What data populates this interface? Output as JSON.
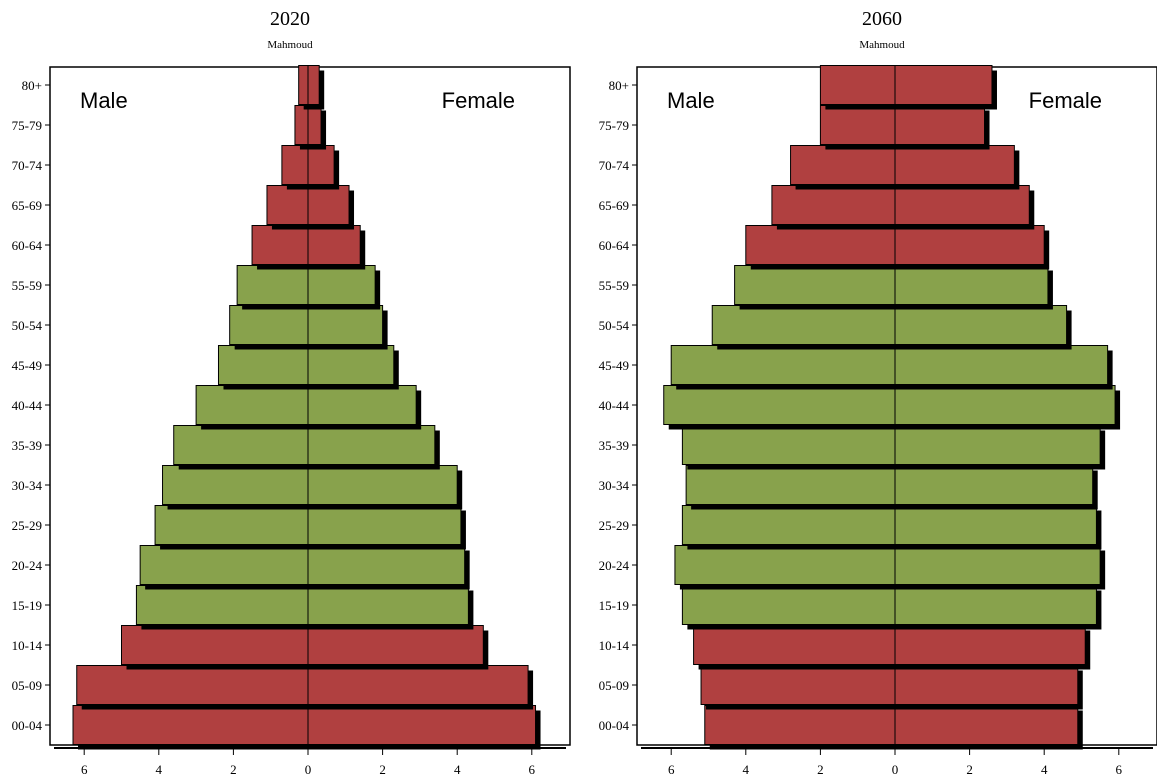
{
  "chart_data": [
    {
      "type": "bar",
      "title": "2020",
      "subtitle": "Mahmoud",
      "left_label": "Male",
      "right_label": "Female",
      "categories": [
        "00-04",
        "05-09",
        "10-14",
        "15-19",
        "20-24",
        "25-29",
        "30-34",
        "35-39",
        "40-44",
        "45-49",
        "50-54",
        "55-59",
        "60-64",
        "65-69",
        "70-74",
        "75-79",
        "80+"
      ],
      "xlim": [
        -6.5,
        6.5
      ],
      "xticks": [
        -6,
        -4,
        -2,
        0,
        2,
        4,
        6
      ],
      "xtick_labels": [
        "6",
        "4",
        "2",
        "0",
        "2",
        "4",
        "6"
      ],
      "series": [
        {
          "side": "male",
          "values": [
            6.3,
            6.2,
            5.0,
            4.6,
            4.5,
            4.1,
            3.9,
            3.6,
            3.0,
            2.4,
            2.1,
            1.9,
            1.5,
            1.1,
            0.7,
            0.35,
            0.25
          ]
        },
        {
          "side": "female",
          "values": [
            6.1,
            5.9,
            4.7,
            4.3,
            4.2,
            4.1,
            4.0,
            3.4,
            2.9,
            2.3,
            2.0,
            1.8,
            1.4,
            1.1,
            0.7,
            0.35,
            0.3
          ]
        }
      ],
      "band_colors": [
        "#b04040",
        "#b04040",
        "#b04040",
        "#88a24c",
        "#88a24c",
        "#88a24c",
        "#88a24c",
        "#88a24c",
        "#88a24c",
        "#88a24c",
        "#88a24c",
        "#88a24c",
        "#b04040",
        "#b04040",
        "#b04040",
        "#b04040",
        "#b04040"
      ],
      "grid": false
    },
    {
      "type": "bar",
      "title": "2060",
      "subtitle": "Mahmoud",
      "left_label": "Male",
      "right_label": "Female",
      "categories": [
        "00-04",
        "05-09",
        "10-14",
        "15-19",
        "20-24",
        "25-29",
        "30-34",
        "35-39",
        "40-44",
        "45-49",
        "50-54",
        "55-59",
        "60-64",
        "65-69",
        "70-74",
        "75-79",
        "80+"
      ],
      "xlim": [
        -6.5,
        6.5
      ],
      "xticks": [
        -6,
        -4,
        -2,
        0,
        2,
        4,
        6
      ],
      "xtick_labels": [
        "6",
        "4",
        "2",
        "0",
        "2",
        "4",
        "6"
      ],
      "series": [
        {
          "side": "male",
          "values": [
            5.1,
            5.2,
            5.4,
            5.7,
            5.9,
            5.7,
            5.6,
            5.7,
            6.2,
            6.0,
            4.9,
            4.3,
            4.0,
            3.3,
            2.8,
            2.0,
            2.0
          ]
        },
        {
          "side": "female",
          "values": [
            4.9,
            4.9,
            5.1,
            5.4,
            5.5,
            5.4,
            5.3,
            5.5,
            5.9,
            5.7,
            4.6,
            4.1,
            4.0,
            3.6,
            3.2,
            2.4,
            2.6
          ]
        }
      ],
      "band_colors": [
        "#b04040",
        "#b04040",
        "#b04040",
        "#88a24c",
        "#88a24c",
        "#88a24c",
        "#88a24c",
        "#88a24c",
        "#88a24c",
        "#88a24c",
        "#88a24c",
        "#88a24c",
        "#b04040",
        "#b04040",
        "#b04040",
        "#b04040",
        "#b04040"
      ],
      "grid": false
    }
  ],
  "colors": {
    "red_band": "#b04040",
    "green_band": "#88a24c",
    "shadow": "#000000",
    "axis": "#000000"
  }
}
